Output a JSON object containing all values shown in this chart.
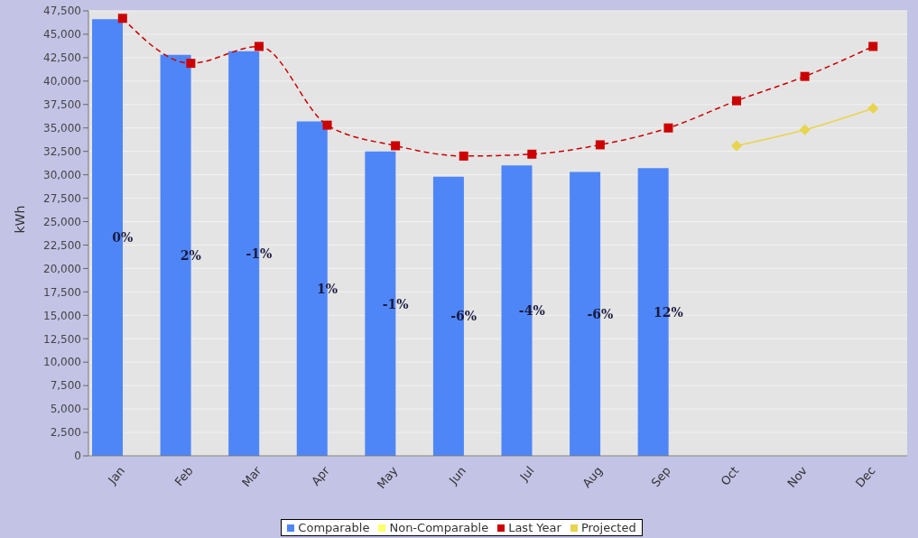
{
  "chart_data": {
    "type": "bar",
    "ylabel": "kWh",
    "categories": [
      "Jan",
      "Feb",
      "Mar",
      "Apr",
      "May",
      "Jun",
      "Jul",
      "Aug",
      "Sep",
      "Oct",
      "Nov",
      "Dec"
    ],
    "series": [
      {
        "name": "Comparable",
        "color": "#4f86f7",
        "values": [
          46600,
          42800,
          43200,
          35700,
          32500,
          29800,
          31000,
          30300,
          30700,
          null,
          null,
          null
        ]
      },
      {
        "name": "Non-Comparable",
        "color": "#ffff66",
        "values": [
          null,
          null,
          null,
          null,
          null,
          null,
          null,
          null,
          null,
          null,
          null,
          null
        ]
      },
      {
        "name": "Last Year",
        "type": "line",
        "color": "#cc0000",
        "marker": "square",
        "line_style": "dashed",
        "values": [
          46700,
          41900,
          43700,
          35300,
          33100,
          32000,
          32200,
          33200,
          35000,
          37900,
          40500,
          43700
        ]
      },
      {
        "name": "Projected",
        "type": "line",
        "color": "#e8d44d",
        "marker": "diamond",
        "line_style": "solid",
        "values": [
          null,
          null,
          null,
          null,
          null,
          null,
          null,
          null,
          null,
          33100,
          34800,
          37100
        ]
      }
    ],
    "annotations": [
      {
        "text": "0%",
        "x": "Jan",
        "y": 23300
      },
      {
        "text": "2%",
        "x": "Feb",
        "y": 21400
      },
      {
        "text": "-1%",
        "x": "Mar",
        "y": 21600
      },
      {
        "text": "1%",
        "x": "Apr",
        "y": 17800
      },
      {
        "text": "-1%",
        "x": "May",
        "y": 16200
      },
      {
        "text": "-6%",
        "x": "Jun",
        "y": 14900
      },
      {
        "text": "-4%",
        "x": "Jul",
        "y": 15500
      },
      {
        "text": "-6%",
        "x": "Aug",
        "y": 15100
      },
      {
        "text": "12%",
        "x": "Sep",
        "y": 15300
      }
    ],
    "ylim": [
      0,
      47500
    ],
    "yticks": [
      0,
      {
        "value": 2500,
        "label": "2,500"
      },
      {
        "value": 5000,
        "label": "5,000"
      },
      {
        "value": 7500,
        "label": "7,500"
      },
      {
        "value": 10000,
        "label": "10,000"
      },
      {
        "value": 12500,
        "label": "12,500"
      },
      {
        "value": 15000,
        "label": "15,000"
      },
      {
        "value": 17500,
        "label": "17,500"
      },
      {
        "value": 20000,
        "label": "20,000"
      },
      {
        "value": 22500,
        "label": "22,500"
      },
      {
        "value": 25000,
        "label": "25,000"
      },
      {
        "value": 27500,
        "label": "27,500"
      },
      {
        "value": 30000,
        "label": "30,000"
      },
      {
        "value": 32500,
        "label": "32,500"
      },
      {
        "value": 35000,
        "label": "35,000"
      },
      {
        "value": 37500,
        "label": "37,500"
      },
      {
        "value": 40000,
        "label": "40,000"
      },
      {
        "value": 42500,
        "label": "42,500"
      },
      {
        "value": 45000,
        "label": "45,000"
      },
      {
        "value": 47500,
        "label": "47,500"
      }
    ],
    "grid": "y",
    "legend": "bottom"
  }
}
